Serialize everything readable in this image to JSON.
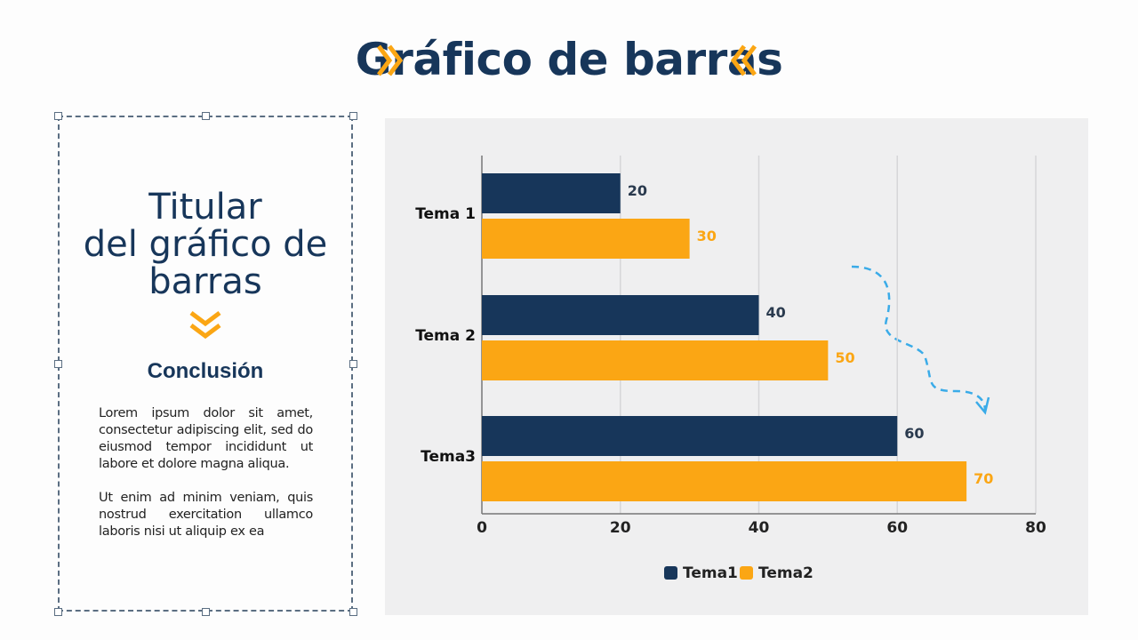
{
  "slide_title": "Gráfico de barras",
  "left_panel": {
    "headline": [
      "Titular",
      "del gráfico de",
      "barras"
    ],
    "conclusion_heading": "Conclusión",
    "paragraphs": [
      "Lorem ipsum dolor sit amet, consectetur adipiscing elit, sed do eiusmod tempor incididunt ut labore et dolore magna aliqua.",
      "Ut enim ad minim veniam, quis nostrud exercitation ullamco laboris nisi ut aliquip ex ea"
    ]
  },
  "colors": {
    "navy": "#17365a",
    "orange": "#fba614",
    "accent_arrow": "#3aabe8"
  },
  "chart_data": {
    "type": "bar",
    "orientation": "horizontal",
    "categories": [
      "Tema 1",
      "Tema 2",
      "Tema3"
    ],
    "series": [
      {
        "name": "Tema1",
        "values": [
          20,
          40,
          60
        ],
        "color": "#17365a"
      },
      {
        "name": "Tema2",
        "values": [
          30,
          50,
          70
        ],
        "color": "#fba614"
      }
    ],
    "xlim": [
      0,
      80
    ],
    "xticks": [
      "0",
      "20",
      "40",
      "60",
      "80"
    ],
    "grid": true,
    "data_labels": true,
    "legend": "bottom"
  }
}
